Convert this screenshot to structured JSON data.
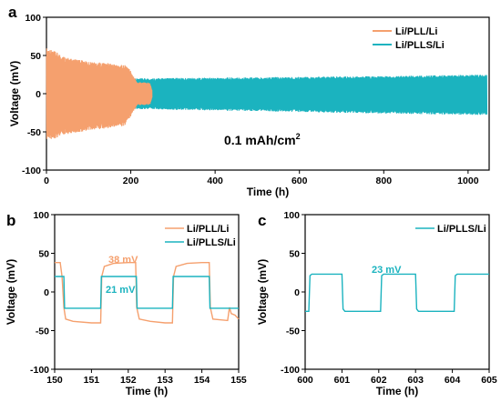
{
  "colors": {
    "pll": "#F5A06E",
    "plls": "#1BB3BF"
  },
  "chart_data": [
    {
      "panel": "a",
      "type": "line",
      "xlabel": "Time (h)",
      "ylabel": "Voltage (mV)",
      "xlim": [
        0,
        1050
      ],
      "ylim": [
        -100,
        100
      ],
      "xticks": [
        "0",
        "200",
        "400",
        "600",
        "800",
        "1000"
      ],
      "yticks": [
        "100",
        "50",
        "0",
        "-50",
        "-100"
      ],
      "annotation": "0.1 mAh/cm",
      "annotation_sup": "2",
      "legend_position": "top-right",
      "series": [
        {
          "name": "Li/PLL/Li",
          "color": "#F5A06E",
          "envelope": {
            "x": [
              0,
              10,
              50,
              100,
              150,
              185,
              190,
              200,
              210,
              215,
              230,
              245,
              250
            ],
            "upper": [
              60,
              58,
              47,
              42,
              40,
              37,
              38,
              30,
              20,
              15,
              15,
              15,
              5
            ],
            "lower": [
              -60,
              -60,
              -53,
              -48,
              -45,
              -42,
              -37,
              -30,
              -20,
              -15,
              -15,
              -15,
              -5
            ]
          }
        },
        {
          "name": "Li/PLLS/Li",
          "color": "#1BB3BF",
          "envelope": {
            "x": [
              200,
              400,
              600,
              800,
              1045
            ],
            "upper": [
              20,
              21,
              22,
              23,
              25
            ],
            "lower": [
              -20,
              -22,
              -24,
              -26,
              -28
            ]
          }
        }
      ]
    },
    {
      "panel": "b",
      "type": "line",
      "xlabel": "Time (h)",
      "ylabel": "Voltage (mV)",
      "xlim": [
        150,
        155
      ],
      "ylim": [
        -100,
        100
      ],
      "xticks": [
        "150",
        "151",
        "152",
        "153",
        "154",
        "155"
      ],
      "yticks": [
        "100",
        "50",
        "0",
        "-50",
        "-100"
      ],
      "annotations": [
        {
          "text": "38 mV",
          "color": "#F5A06E"
        },
        {
          "text": "21 mV",
          "color": "#1BB3BF"
        }
      ],
      "legend_position": "top-right",
      "series": [
        {
          "name": "Li/PLL/Li",
          "color": "#F5A06E",
          "points": [
            [
              150,
              38
            ],
            [
              150.15,
              38
            ],
            [
              150.2,
              20
            ],
            [
              150.25,
              -20
            ],
            [
              150.3,
              -35
            ],
            [
              150.5,
              -38
            ],
            [
              151.0,
              -40
            ],
            [
              151.25,
              -40
            ],
            [
              151.28,
              20
            ],
            [
              151.35,
              33
            ],
            [
              151.6,
              37
            ],
            [
              152.0,
              38
            ],
            [
              152.2,
              38
            ],
            [
              152.23,
              -20
            ],
            [
              152.3,
              -35
            ],
            [
              152.6,
              -38
            ],
            [
              153.0,
              -40
            ],
            [
              153.2,
              -40
            ],
            [
              153.23,
              20
            ],
            [
              153.3,
              33
            ],
            [
              153.6,
              37
            ],
            [
              154.0,
              38
            ],
            [
              154.2,
              38
            ],
            [
              154.23,
              -20
            ],
            [
              154.3,
              -35
            ],
            [
              154.7,
              -37
            ],
            [
              154.75,
              -20
            ],
            [
              154.8,
              -28
            ],
            [
              154.9,
              -30
            ],
            [
              155,
              -35
            ]
          ]
        },
        {
          "name": "Li/PLLS/Li",
          "color": "#1BB3BF",
          "points": [
            [
              150,
              20
            ],
            [
              150.25,
              20
            ],
            [
              150.27,
              -21
            ],
            [
              151.25,
              -21
            ],
            [
              151.27,
              20
            ],
            [
              152.22,
              20
            ],
            [
              152.24,
              -21
            ],
            [
              153.2,
              -21
            ],
            [
              153.22,
              20
            ],
            [
              154.2,
              20
            ],
            [
              154.22,
              -21
            ],
            [
              155,
              -21
            ]
          ]
        }
      ]
    },
    {
      "panel": "c",
      "type": "line",
      "xlabel": "Time (h)",
      "ylabel": "Voltage (mV)",
      "xlim": [
        600,
        605
      ],
      "ylim": [
        -100,
        100
      ],
      "xticks": [
        "600",
        "601",
        "602",
        "603",
        "604",
        "605"
      ],
      "yticks": [
        "100",
        "50",
        "0",
        "-50",
        "-100"
      ],
      "annotations": [
        {
          "text": "23 mV",
          "color": "#1BB3BF"
        }
      ],
      "legend_position": "top-right",
      "series": [
        {
          "name": "Li/PLLS/Li",
          "color": "#1BB3BF",
          "points": [
            [
              600,
              -25
            ],
            [
              600.1,
              -25
            ],
            [
              600.13,
              21
            ],
            [
              600.18,
              23
            ],
            [
              601.0,
              23
            ],
            [
              601.03,
              -22
            ],
            [
              601.08,
              -25
            ],
            [
              602.05,
              -25
            ],
            [
              602.08,
              21
            ],
            [
              602.13,
              23
            ],
            [
              603.0,
              23
            ],
            [
              603.03,
              -22
            ],
            [
              603.08,
              -25
            ],
            [
              604.05,
              -25
            ],
            [
              604.08,
              21
            ],
            [
              604.13,
              23
            ],
            [
              605,
              23
            ]
          ]
        }
      ]
    }
  ]
}
